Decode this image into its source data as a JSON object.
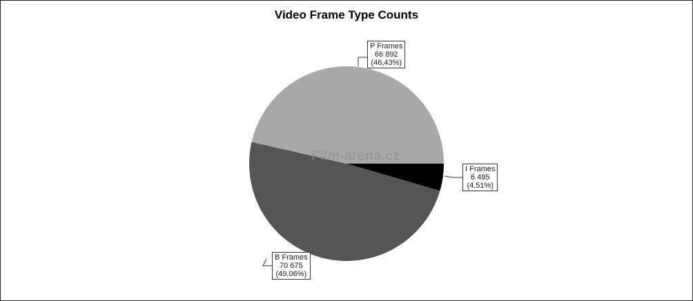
{
  "chart_data": {
    "type": "pie",
    "title": "Video Frame Type Counts",
    "start_angle": "east, clockwise",
    "slices": [
      {
        "label": "I Frames",
        "value": 6495,
        "value_text": "6 495",
        "percent_text": "(4,51%)",
        "color": "#000000"
      },
      {
        "label": "B Frames",
        "value": 70675,
        "value_text": "70 675",
        "percent_text": "(49,06%)",
        "color": "#555555"
      },
      {
        "label": "P Frames",
        "value": 66892,
        "value_text": "66 892",
        "percent_text": "(46,43%)",
        "color": "#a9a9a9"
      }
    ],
    "legend": "none, callout labels"
  },
  "watermark": "Film-arena.cz"
}
